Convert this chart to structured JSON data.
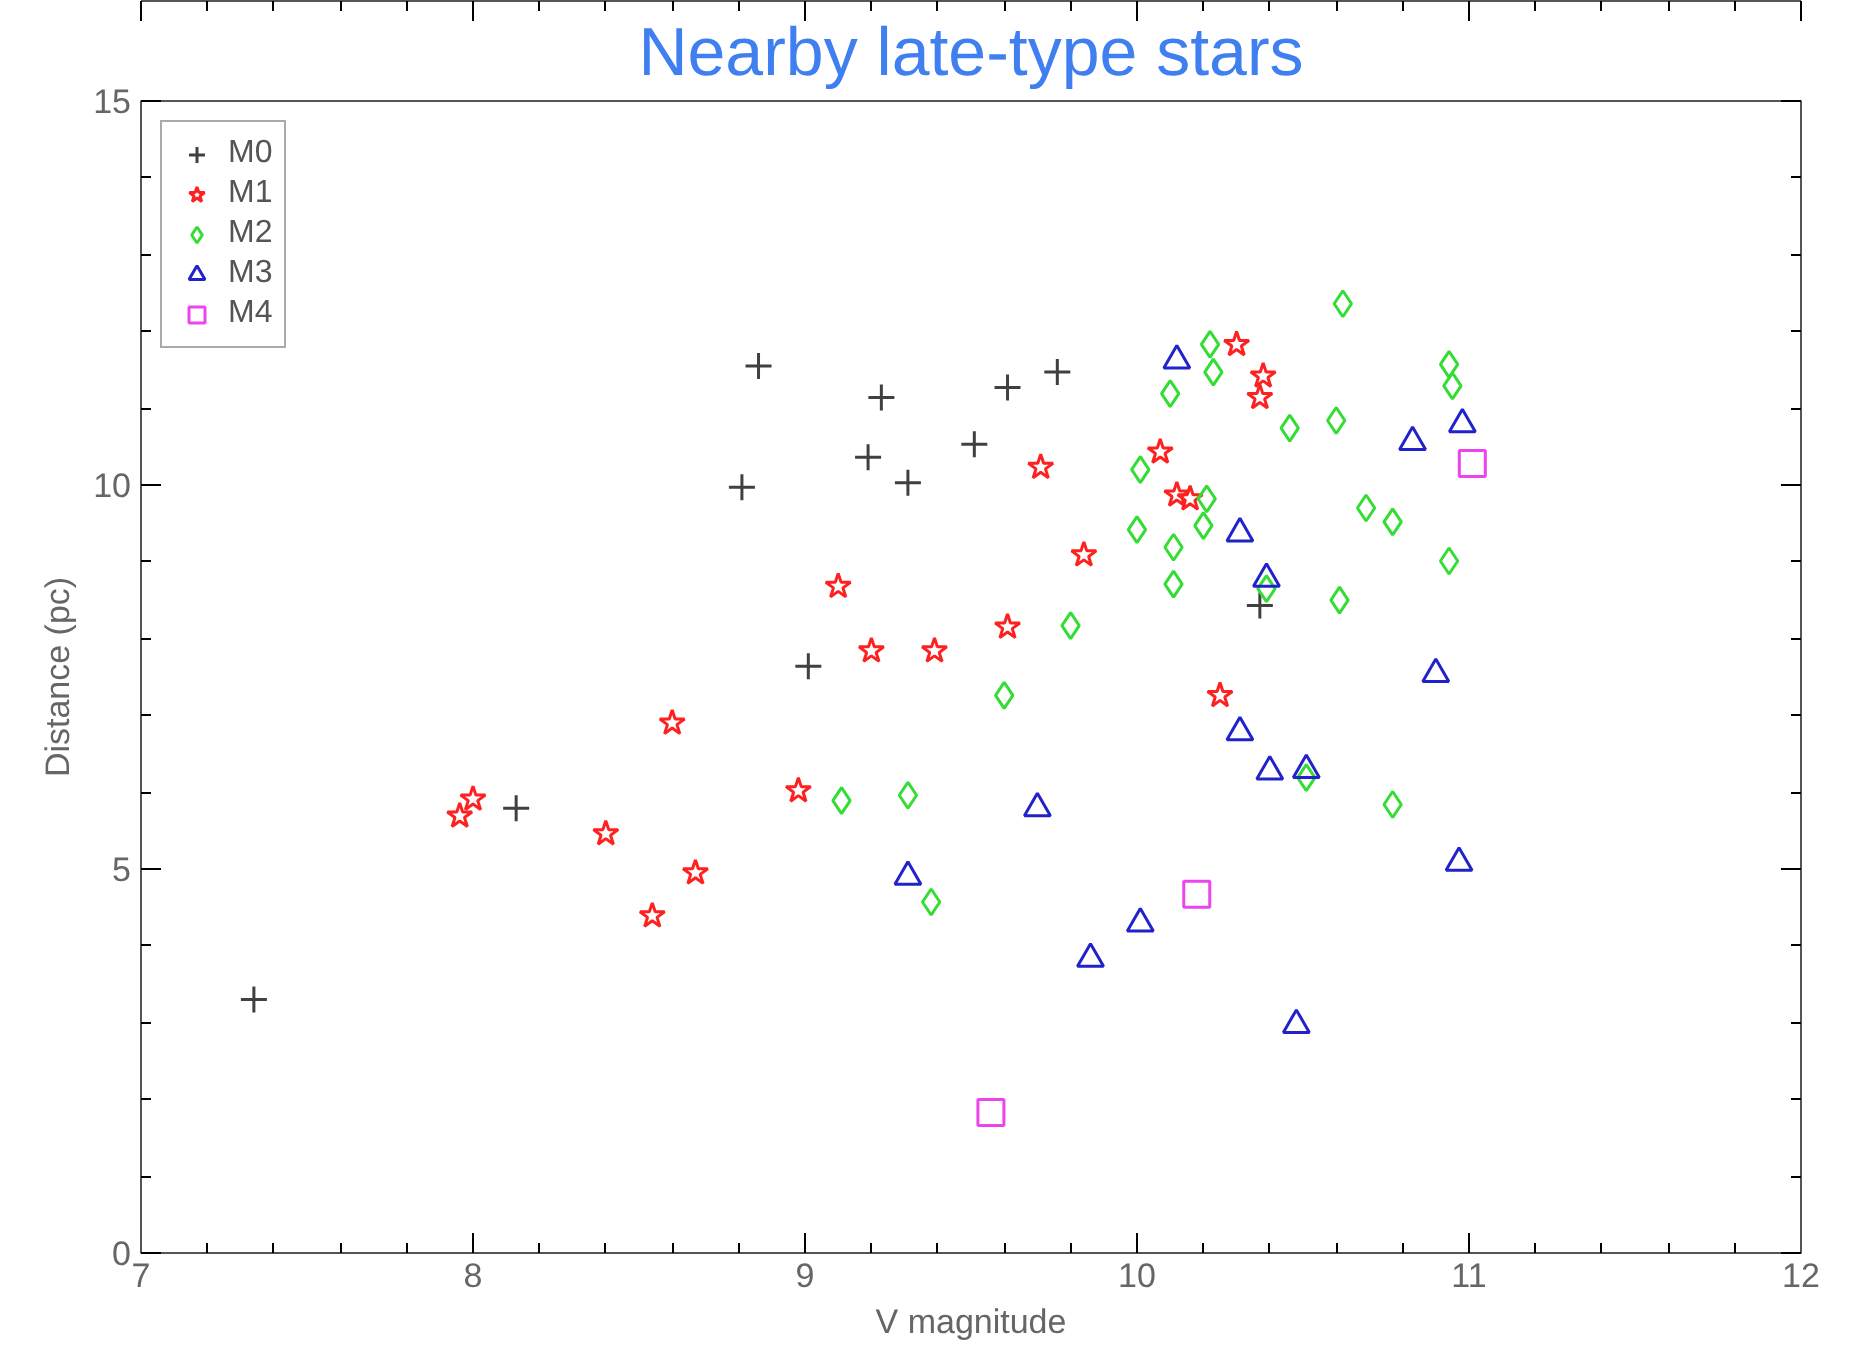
{
  "chart_data": {
    "type": "scatter",
    "title": "Nearby late-type stars",
    "xlabel": "V magnitude",
    "ylabel": "Distance (pc)",
    "xlim": [
      7,
      12
    ],
    "xticks": [
      7,
      8,
      9,
      10,
      11,
      12
    ],
    "ylim": [
      0,
      15
    ],
    "yticks": [
      0,
      5,
      10,
      15
    ],
    "grid": false,
    "legend": "top left",
    "series": [
      {
        "name": "M0",
        "color": "#404040",
        "marker": "cross",
        "x": [
          7.34,
          8.13,
          8.86,
          8.81,
          9.23,
          9.19,
          9.31,
          9.51,
          9.61,
          9.76,
          9.01,
          10.37
        ],
        "values": [
          3.3,
          5.79,
          11.55,
          9.97,
          11.14,
          10.36,
          10.03,
          10.53,
          11.27,
          11.47,
          7.64,
          8.43
        ]
      },
      {
        "name": "M1",
        "color": "#ff2020",
        "marker": "star",
        "x": [
          7.96,
          8.0,
          8.4,
          8.54,
          8.6,
          8.67,
          8.98,
          9.1,
          9.2,
          9.39,
          9.61,
          9.71,
          9.84,
          10.07,
          10.12,
          10.16,
          10.3,
          10.38,
          10.37,
          10.25
        ],
        "values": [
          5.69,
          5.91,
          5.46,
          4.39,
          6.9,
          4.95,
          6.02,
          8.68,
          7.84,
          7.84,
          8.15,
          10.23,
          9.09,
          10.43,
          9.87,
          9.82,
          11.83,
          11.42,
          11.14,
          7.26
        ]
      },
      {
        "name": "M2",
        "color": "#33dd33",
        "marker": "diamond",
        "x": [
          9.11,
          9.31,
          9.38,
          9.6,
          9.8,
          10.0,
          10.01,
          10.1,
          10.22,
          10.23,
          10.11,
          10.11,
          10.2,
          10.21,
          10.46,
          10.6,
          10.62,
          10.69,
          10.77,
          10.94,
          10.95,
          10.94,
          10.61,
          10.77,
          10.51,
          10.39
        ],
        "values": [
          5.89,
          5.96,
          4.57,
          7.26,
          8.17,
          9.42,
          10.2,
          11.19,
          11.83,
          11.47,
          8.71,
          9.19,
          9.47,
          9.82,
          10.74,
          10.84,
          12.36,
          9.7,
          9.52,
          11.57,
          11.29,
          9.01,
          8.5,
          5.84,
          6.19,
          8.65
        ]
      },
      {
        "name": "M3",
        "color": "#2222cc",
        "marker": "triangle",
        "x": [
          9.31,
          9.7,
          9.86,
          10.01,
          10.12,
          10.31,
          10.39,
          10.31,
          10.4,
          10.51,
          10.48,
          10.83,
          10.98,
          10.9,
          10.97
        ],
        "values": [
          4.9,
          5.79,
          3.83,
          4.29,
          11.62,
          9.37,
          8.78,
          6.78,
          6.27,
          6.29,
          2.97,
          10.56,
          10.79,
          7.54,
          5.08
        ]
      },
      {
        "name": "M4",
        "color": "#ee44ee",
        "marker": "square",
        "x": [
          9.56,
          10.18,
          11.01
        ],
        "values": [
          1.83,
          4.67,
          10.28
        ]
      }
    ]
  }
}
